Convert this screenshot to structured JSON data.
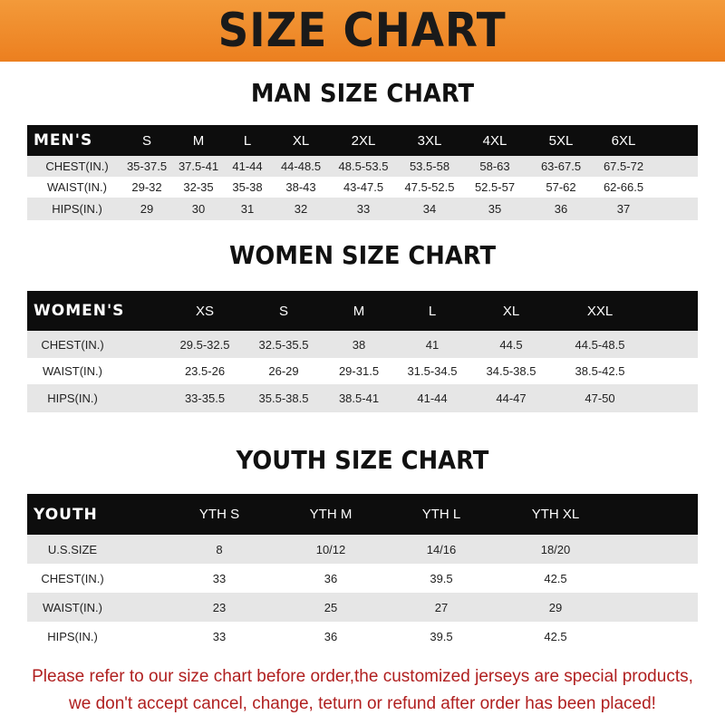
{
  "title": "SIZE CHART",
  "colors": {
    "banner": "#ef8a2a",
    "header_row": "#0d0d0d",
    "stripe": "#e6e6e6",
    "notice": "#b01f1f"
  },
  "men": {
    "heading": "MAN SIZE CHART",
    "header_label": "MEN'S",
    "sizes": [
      "S",
      "M",
      "L",
      "XL",
      "2XL",
      "3XL",
      "4XL",
      "5XL",
      "6XL"
    ],
    "rows": [
      {
        "label": "CHEST(IN.)",
        "values": [
          "35-37.5",
          "37.5-41",
          "41-44",
          "44-48.5",
          "48.5-53.5",
          "53.5-58",
          "58-63",
          "63-67.5",
          "67.5-72"
        ]
      },
      {
        "label": "WAIST(IN.)",
        "values": [
          "29-32",
          "32-35",
          "35-38",
          "38-43",
          "43-47.5",
          "47.5-52.5",
          "52.5-57",
          "57-62",
          "62-66.5"
        ]
      },
      {
        "label": "HIPS(IN.)",
        "values": [
          "29",
          "30",
          "31",
          "32",
          "33",
          "34",
          "35",
          "36",
          "37"
        ]
      }
    ]
  },
  "women": {
    "heading": "WOMEN SIZE CHART",
    "header_label": "WOMEN'S",
    "sizes": [
      "XS",
      "S",
      "M",
      "L",
      "XL",
      "XXL"
    ],
    "rows": [
      {
        "label": "CHEST(IN.)",
        "values": [
          "29.5-32.5",
          "32.5-35.5",
          "38",
          "41",
          "44.5",
          "44.5-48.5"
        ]
      },
      {
        "label": "WAIST(IN.)",
        "values": [
          "23.5-26",
          "26-29",
          "29-31.5",
          "31.5-34.5",
          "34.5-38.5",
          "38.5-42.5"
        ]
      },
      {
        "label": "HIPS(IN.)",
        "values": [
          "33-35.5",
          "35.5-38.5",
          "38.5-41",
          "41-44",
          "44-47",
          "47-50"
        ]
      }
    ]
  },
  "youth": {
    "heading": "YOUTH SIZE CHART",
    "header_label": "YOUTH",
    "sizes": [
      "YTH S",
      "YTH M",
      "YTH L",
      "YTH XL"
    ],
    "rows": [
      {
        "label": "U.S.SIZE",
        "values": [
          "8",
          "10/12",
          "14/16",
          "18/20"
        ]
      },
      {
        "label": "CHEST(IN.)",
        "values": [
          "33",
          "36",
          "39.5",
          "42.5"
        ]
      },
      {
        "label": "WAIST(IN.)",
        "values": [
          "23",
          "25",
          "27",
          "29"
        ]
      },
      {
        "label": "HIPS(IN.)",
        "values": [
          "33",
          "36",
          "39.5",
          "42.5"
        ]
      }
    ]
  },
  "notice": {
    "line1": "Please refer to our size chart before order,the customized jerseys are special products,",
    "line2": "we don't accept cancel, change, teturn or refund after order has been placed!"
  }
}
